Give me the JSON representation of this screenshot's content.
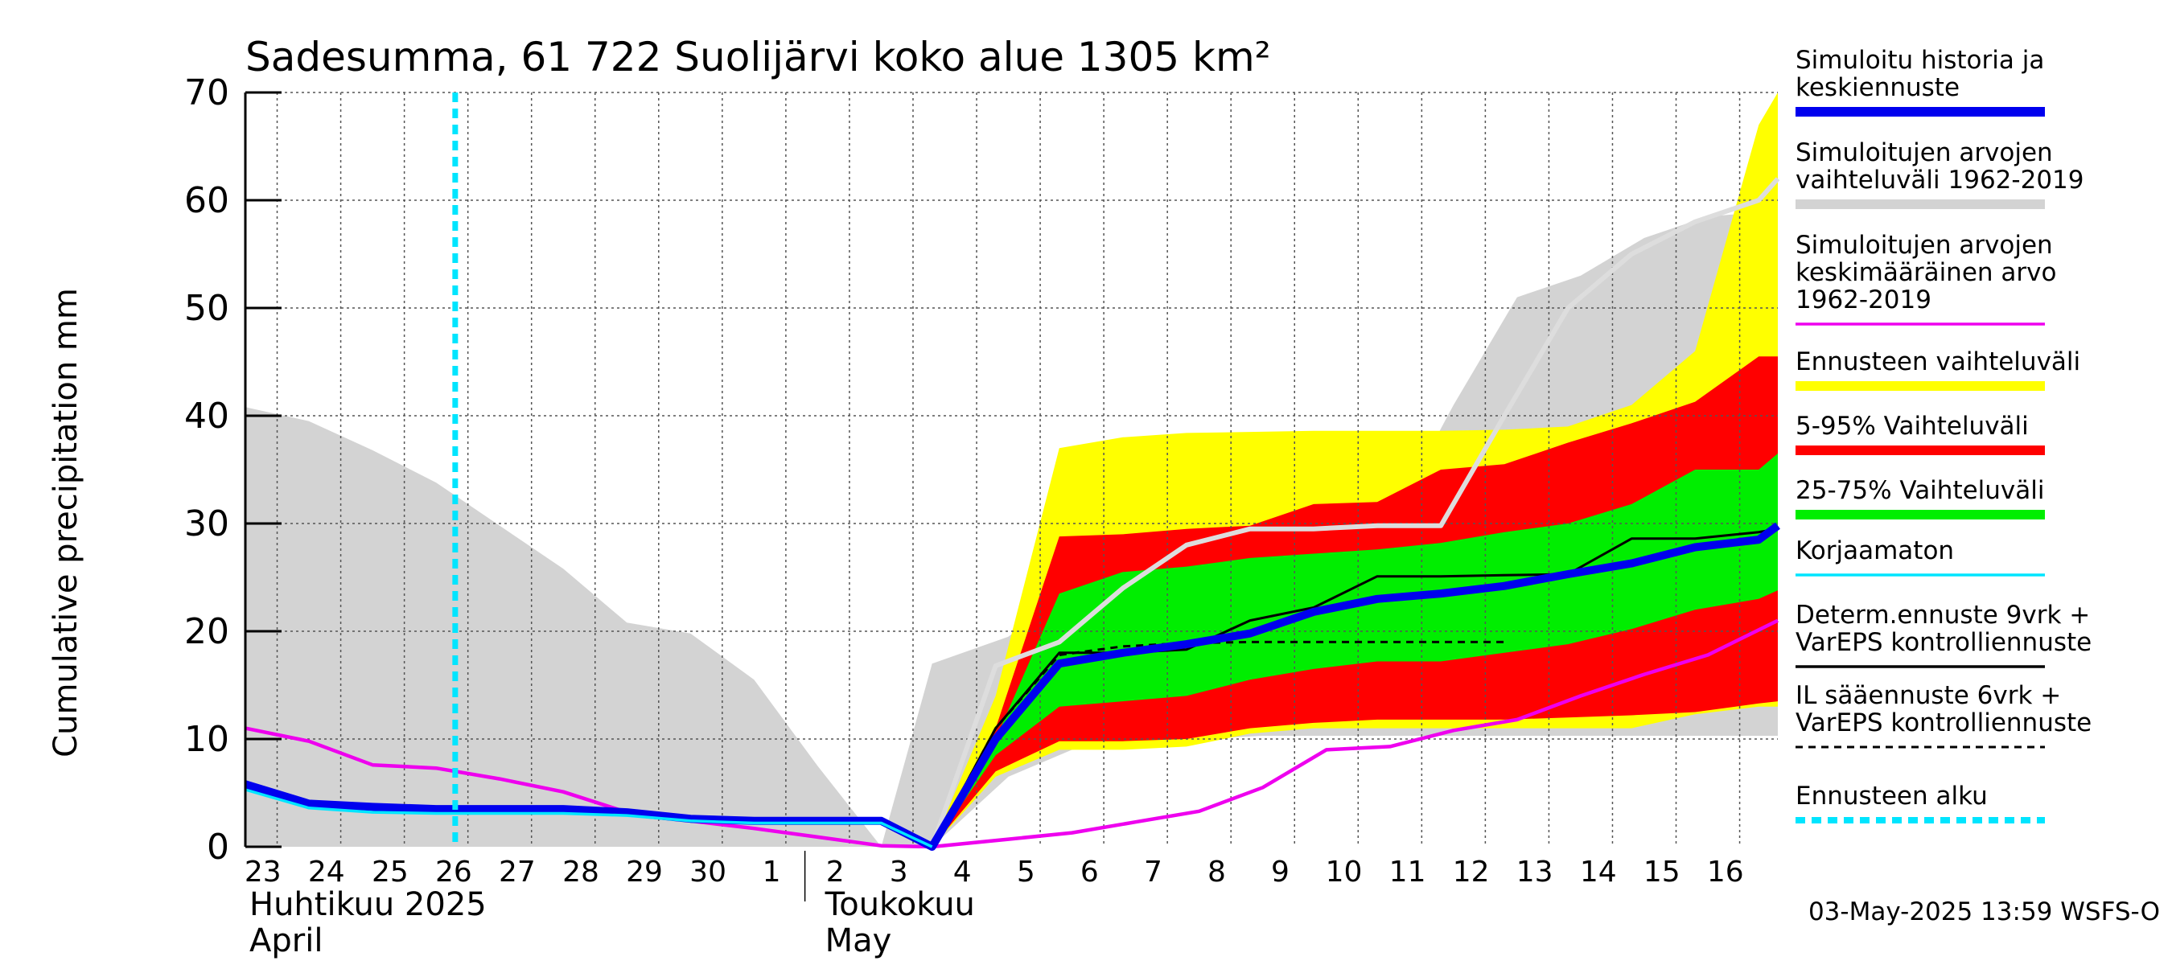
{
  "chart_data": {
    "type": "area",
    "title": "Sadesumma, 61 722 Suolijärvi koko alue 1305 km²",
    "ylabel": "Cumulative precipitation   mm",
    "xlabel": "",
    "ylim": [
      0,
      70
    ],
    "yticks": [
      0,
      10,
      20,
      30,
      40,
      50,
      60,
      70
    ],
    "x_dates": [
      "23",
      "24",
      "25",
      "26",
      "27",
      "28",
      "29",
      "30",
      "1",
      "2",
      "3",
      "4",
      "5",
      "6",
      "7",
      "8",
      "9",
      "10",
      "11",
      "12",
      "13",
      "14",
      "15",
      "16"
    ],
    "x_domain": [
      22.5,
      46.6
    ],
    "forecast_start_x": 25.8,
    "month_labels": [
      {
        "line1": "Huhtikuu  2025",
        "line2": "April",
        "at": 22.5
      },
      {
        "line1": "Toukokuu",
        "line2": "May",
        "at": 31.3
      }
    ],
    "month_divider_x": 31.3,
    "grid": true,
    "timestamp": "03-May-2025 13:59 WSFS-O",
    "colors": {
      "hist_band": "#d3d3d3",
      "forecast_full": "#ffff00",
      "band_5_95": "#ff0000",
      "band_25_75": "#00ee00",
      "sim_mean": "#ee00ee",
      "sim_line": "#0000ee",
      "uncorrected": "#00e5ff",
      "determ": "#000000",
      "il": "#000000",
      "forecast_start": "#00e5ff",
      "hist_max_line": "#dddddd"
    },
    "series": [
      {
        "name": "hist_upper",
        "x": [
          22.5,
          23.5,
          24.5,
          25.5,
          26.5,
          27.5,
          28.5,
          29.5,
          30.5,
          31.5,
          32.5,
          33.3,
          34.5,
          35.5,
          36.5,
          37.5,
          38.5,
          39.5,
          40.5,
          41.5,
          42.5,
          43.5,
          44.5,
          45.5,
          46.6
        ],
        "y": [
          40.8,
          39.5,
          36.8,
          33.8,
          29.8,
          25.8,
          20.8,
          19.8,
          15.5,
          7.5,
          0,
          17,
          19.5,
          24,
          28,
          29.5,
          29.5,
          30,
          30,
          41,
          51,
          53,
          56.5,
          58.5,
          59
        ]
      },
      {
        "name": "hist_lower",
        "x": [
          22.5,
          33.3,
          34.5,
          35.5,
          36.5,
          37.5,
          38.5,
          39.5,
          46.6
        ],
        "y": [
          0,
          0,
          6.5,
          9,
          10,
          10,
          10.3,
          10.3,
          10.3
        ]
      },
      {
        "name": "hist_max",
        "x": [
          33.3,
          34.3,
          35.3,
          36.3,
          37.3,
          38.3,
          39.3,
          40.3,
          41.3,
          42.3,
          43.3,
          44.3,
          45.3,
          46.3,
          46.6
        ],
        "y": [
          0,
          16.8,
          19,
          24,
          28,
          29.5,
          29.5,
          29.8,
          29.8,
          40,
          50,
          55,
          58,
          60,
          62
        ]
      },
      {
        "name": "yellow_upper",
        "x": [
          33.3,
          34.3,
          35.3,
          36.3,
          37.3,
          38.3,
          39.3,
          40.3,
          41.3,
          42.3,
          43.3,
          44.3,
          45.3,
          46.3,
          46.6
        ],
        "y": [
          0,
          14,
          37,
          38,
          38.4,
          38.5,
          38.6,
          38.6,
          38.6,
          38.7,
          39,
          41,
          46,
          67,
          70
        ]
      },
      {
        "name": "yellow_lower",
        "x": [
          33.3,
          34.3,
          35.3,
          36.3,
          37.3,
          38.3,
          39.3,
          40.3,
          41.3,
          42.3,
          43.3,
          44.3,
          45.3,
          46.3,
          46.6
        ],
        "y": [
          0,
          6.5,
          9,
          9,
          9.3,
          10.5,
          11,
          11,
          11,
          11,
          11,
          11,
          12.3,
          13,
          13
        ]
      },
      {
        "name": "red_upper",
        "x": [
          33.3,
          34.3,
          35.3,
          36.3,
          37.3,
          38.3,
          39.3,
          40.3,
          41.3,
          42.3,
          43.3,
          44.3,
          45.3,
          46.3,
          46.6
        ],
        "y": [
          0,
          11,
          28.8,
          29,
          29.5,
          29.8,
          31.8,
          32,
          35,
          35.5,
          37.5,
          39.3,
          41.3,
          45.5,
          45.5
        ]
      },
      {
        "name": "red_lower",
        "x": [
          33.3,
          34.3,
          35.3,
          36.3,
          37.3,
          38.3,
          39.3,
          40.3,
          41.3,
          42.3,
          43.3,
          44.3,
          45.3,
          46.3,
          46.6
        ],
        "y": [
          0,
          7,
          9.8,
          9.8,
          10,
          11,
          11.5,
          11.8,
          11.8,
          11.8,
          12,
          12.2,
          12.5,
          13.3,
          13.5
        ]
      },
      {
        "name": "green_upper",
        "x": [
          33.3,
          34.3,
          35.3,
          36.3,
          37.3,
          38.3,
          39.3,
          40.3,
          41.3,
          42.3,
          43.3,
          44.3,
          45.3,
          46.3,
          46.6
        ],
        "y": [
          0,
          10,
          23.5,
          25.5,
          26,
          26.8,
          27.2,
          27.6,
          28.2,
          29.2,
          30,
          31.8,
          35,
          35,
          36.5
        ]
      },
      {
        "name": "green_lower",
        "x": [
          33.3,
          34.3,
          35.3,
          36.3,
          37.3,
          38.3,
          39.3,
          40.3,
          41.3,
          42.3,
          43.3,
          44.3,
          45.3,
          46.3,
          46.6
        ],
        "y": [
          0,
          8.5,
          13,
          13.5,
          14,
          15.5,
          16.5,
          17.2,
          17.2,
          18,
          18.8,
          20.2,
          22,
          23,
          23.8
        ]
      },
      {
        "name": "sim_mean",
        "x": [
          22.5,
          23.5,
          24.5,
          25.5,
          26.5,
          27.5,
          28.5,
          29.5,
          30.5,
          31.5,
          32.5,
          33.3,
          34.5,
          35.5,
          36.5,
          37.5,
          38.5,
          39.5,
          40.5,
          41.5,
          42.5,
          43.5,
          44.5,
          45.5,
          46.6
        ],
        "y": [
          11,
          9.8,
          7.6,
          7.3,
          6.3,
          5.1,
          3.2,
          2.4,
          1.7,
          0.9,
          0.1,
          0,
          0.7,
          1.3,
          2.3,
          3.3,
          5.5,
          9,
          9.3,
          10.8,
          11.8,
          14,
          16,
          17.8,
          21
        ]
      },
      {
        "name": "sim_line",
        "x": [
          22.5,
          23.5,
          24.5,
          25.5,
          26.5,
          27.5,
          28.5,
          29.5,
          30.5,
          31.5,
          32.5,
          33.3,
          34.3,
          35.3,
          36.3,
          37.3,
          38.3,
          39.3,
          40.3,
          41.3,
          42.3,
          43.3,
          44.3,
          45.3,
          46.3,
          46.6
        ],
        "y": [
          5.8,
          4,
          3.7,
          3.5,
          3.5,
          3.5,
          3.2,
          2.6,
          2.4,
          2.4,
          2.4,
          0,
          10,
          17,
          18,
          18.8,
          19.8,
          21.8,
          23,
          23.5,
          24.2,
          25.3,
          26.3,
          27.8,
          28.5,
          29.8
        ]
      },
      {
        "name": "uncorrected",
        "x": [
          22.5,
          23.5,
          24.5,
          25.5,
          26.5,
          27.5,
          28.5,
          29.5,
          30.5,
          31.5,
          32.5,
          33.3
        ],
        "y": [
          5.3,
          3.6,
          3.2,
          3.1,
          3.1,
          3.1,
          2.9,
          2.4,
          2.2,
          2.2,
          2.2,
          0
        ]
      },
      {
        "name": "determ",
        "x": [
          33.3,
          34.3,
          35.3,
          36.3,
          37.3,
          38.3,
          39.3,
          40.3,
          41.3,
          42.3,
          43.3,
          44.3,
          45.3,
          46.3,
          46.6
        ],
        "y": [
          0,
          11,
          18,
          18,
          18.3,
          21,
          22.2,
          25.1,
          25.1,
          25.2,
          25.3,
          28.6,
          28.6,
          29.2,
          29.5
        ]
      },
      {
        "name": "il",
        "x": [
          33.3,
          34.3,
          35.3,
          36.3,
          37.3,
          38.3,
          39.3,
          40.3,
          41.3,
          42.3
        ],
        "y": [
          0,
          11,
          17.8,
          18.6,
          18.9,
          19,
          19,
          19,
          19,
          19
        ]
      }
    ],
    "legend": [
      {
        "label": "Simuloitu historia ja keskiennuste",
        "lines": [
          "Simuloitu historia ja",
          "keskiennuste"
        ],
        "color": "#0000ee",
        "style": "thick"
      },
      {
        "label": "Simuloitujen arvojen vaihteluväli 1962-2019",
        "lines": [
          "Simuloitujen arvojen",
          "vaihteluväli 1962-2019"
        ],
        "color": "#d3d3d3",
        "style": "thick"
      },
      {
        "label": "Simuloitujen arvojen keskimääräinen arvo 1962-2019",
        "lines": [
          "Simuloitujen arvojen",
          "keskimääräinen arvo",
          "   1962-2019"
        ],
        "color": "#ee00ee",
        "style": "thin"
      },
      {
        "label": "Ennusteen vaihteluväli",
        "lines": [
          "Ennusteen vaihteluväli"
        ],
        "color": "#ffff00",
        "style": "thick"
      },
      {
        "label": "5-95% Vaihteluväli",
        "lines": [
          "5-95% Vaihteluväli"
        ],
        "color": "#ff0000",
        "style": "thick"
      },
      {
        "label": "25-75% Vaihteluväli",
        "lines": [
          "25-75% Vaihteluväli"
        ],
        "color": "#00ee00",
        "style": "thick"
      },
      {
        "label": "Korjaamaton",
        "lines": [
          "Korjaamaton"
        ],
        "color": "#00e5ff",
        "style": "thin"
      },
      {
        "label": "Determ.ennuste 9vrk + VarEPS kontrolliennuste",
        "lines": [
          "Determ.ennuste 9vrk +",
          "VarEPS kontrolliennuste"
        ],
        "color": "#000000",
        "style": "thin"
      },
      {
        "label": "IL sääennuste 6vrk + VarEPS kontrolliennuste",
        "lines": [
          "IL sääennuste 6vrk  +",
          "  VarEPS kontrolliennuste"
        ],
        "color": "#000000",
        "style": "dashed"
      },
      {
        "label": "Ennusteen alku",
        "lines": [
          "Ennusteen alku"
        ],
        "color": "#00e5ff",
        "style": "dotted-thick"
      }
    ]
  }
}
